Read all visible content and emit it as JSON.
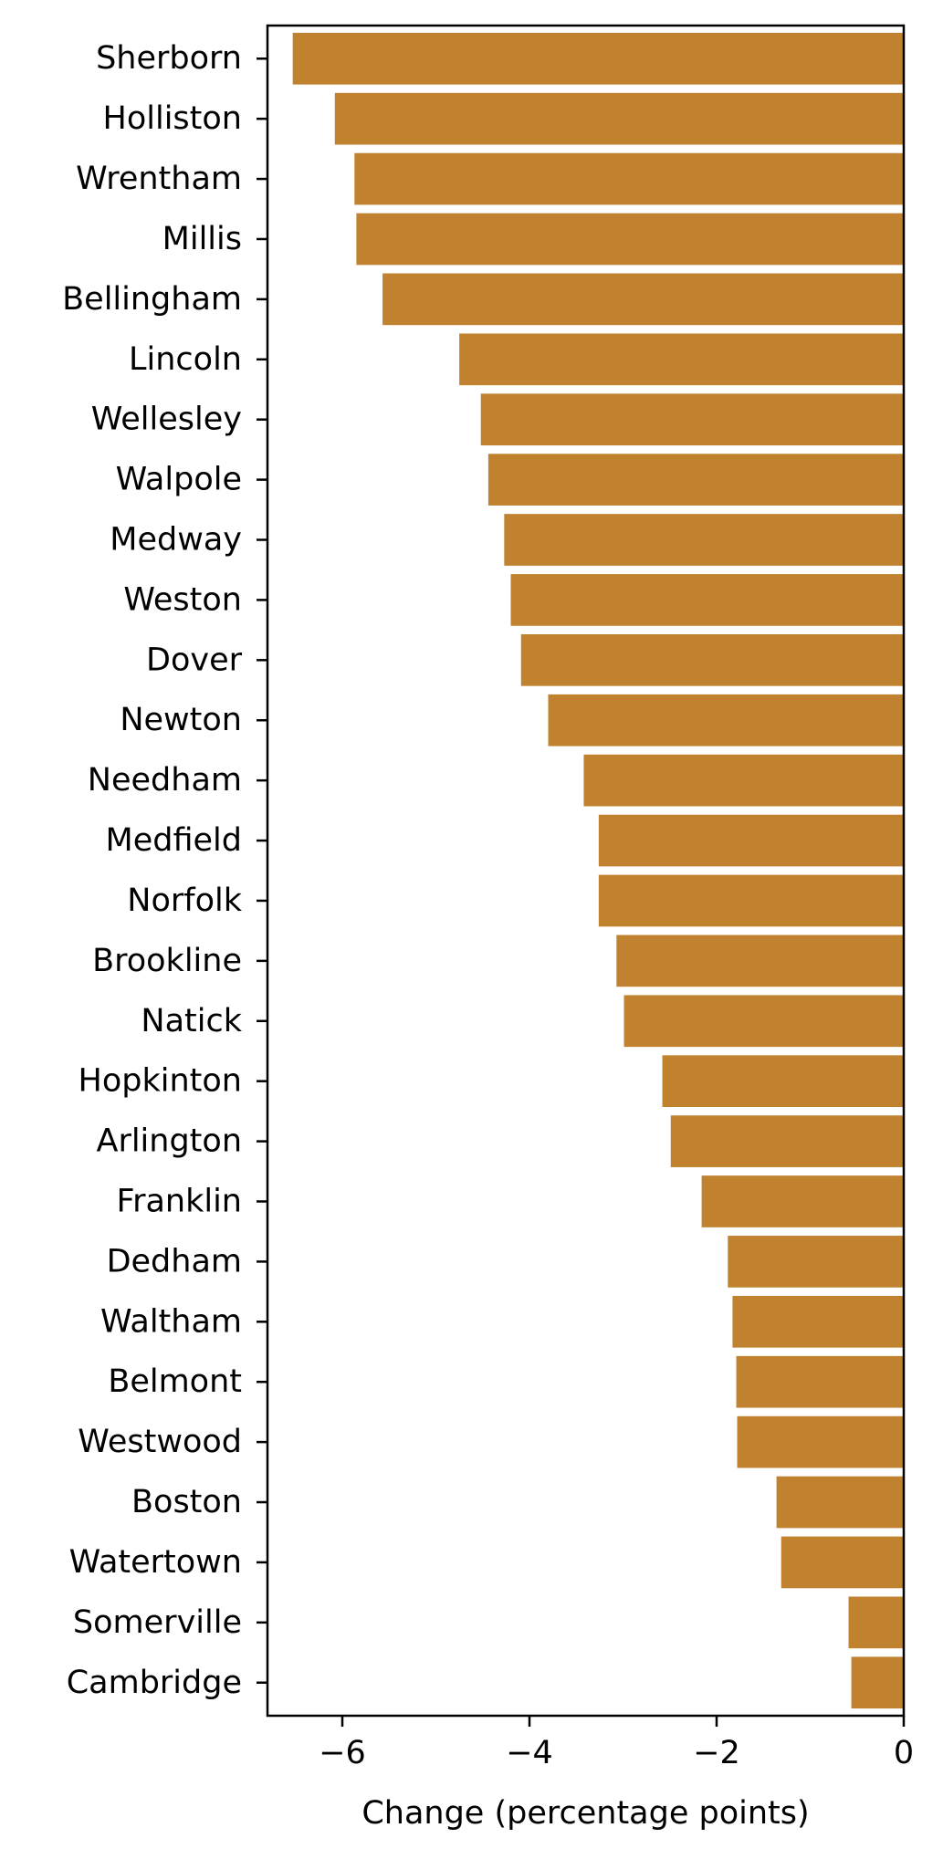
{
  "chart_data": {
    "type": "bar",
    "orientation": "horizontal",
    "title": "",
    "xlabel": "Change (percentage points)",
    "ylabel": "",
    "xlim": [
      -6.8,
      0
    ],
    "x_ticks": [
      -6,
      -4,
      -2,
      0
    ],
    "x_tick_labels": [
      "−6",
      "−4",
      "−2",
      "0"
    ],
    "grid": false,
    "bar_color": "#C0822F",
    "categories": [
      "Sherborn",
      "Holliston",
      "Wrentham",
      "Millis",
      "Bellingham",
      "Lincoln",
      "Wellesley",
      "Walpole",
      "Medway",
      "Weston",
      "Dover",
      "Newton",
      "Needham",
      "Medfield",
      "Norfolk",
      "Brookline",
      "Natick",
      "Hopkinton",
      "Arlington",
      "Franklin",
      "Dedham",
      "Waltham",
      "Belmont",
      "Westwood",
      "Boston",
      "Watertown",
      "Somerville",
      "Cambridge"
    ],
    "values": [
      -6.53,
      -6.08,
      -5.87,
      -5.85,
      -5.57,
      -4.75,
      -4.52,
      -4.44,
      -4.27,
      -4.2,
      -4.09,
      -3.8,
      -3.42,
      -3.26,
      -3.26,
      -3.07,
      -2.99,
      -2.58,
      -2.49,
      -2.16,
      -1.88,
      -1.83,
      -1.79,
      -1.78,
      -1.36,
      -1.31,
      -0.59,
      -0.56
    ]
  }
}
